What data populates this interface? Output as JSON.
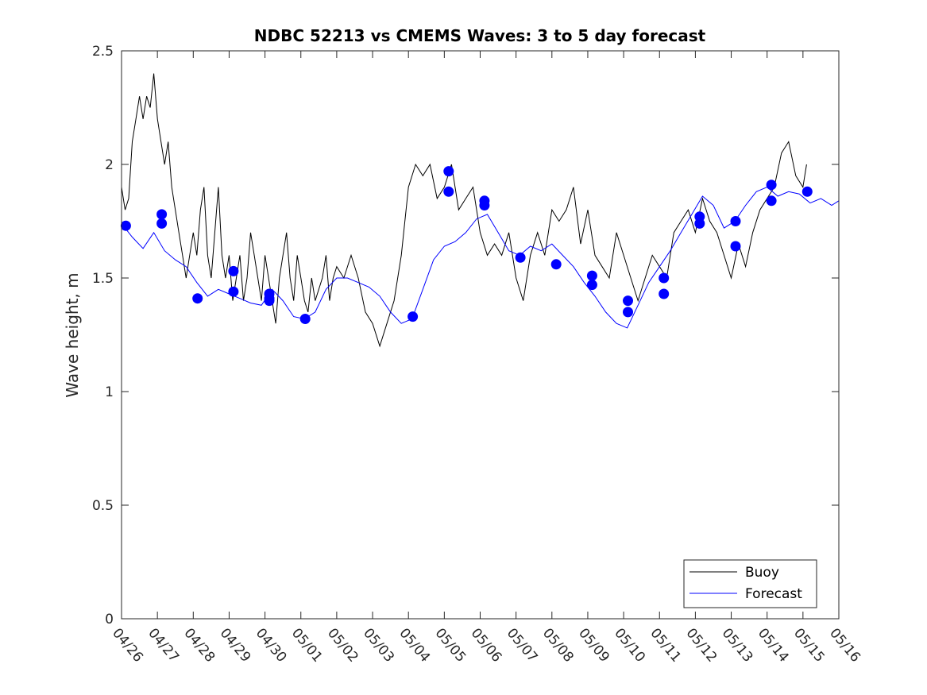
{
  "chart_data": {
    "type": "line",
    "title": "NDBC 52213 vs CMEMS Waves: 3 to 5 day forecast",
    "xlabel": "",
    "ylabel": "Wave height, m",
    "xlim": [
      "04/26",
      "05/16"
    ],
    "ylim": [
      0,
      2.5
    ],
    "x_ticks": [
      "04/26",
      "04/27",
      "04/28",
      "04/29",
      "04/30",
      "05/01",
      "05/02",
      "05/03",
      "05/04",
      "05/05",
      "05/06",
      "05/07",
      "05/08",
      "05/09",
      "05/10",
      "05/11",
      "05/12",
      "05/13",
      "05/14",
      "05/15",
      "05/16"
    ],
    "y_ticks": [
      "0",
      "0.5",
      "1",
      "1.5",
      "2",
      "2.5"
    ],
    "grid": false,
    "legend": {
      "placement": "bottom-right",
      "entries": [
        "Buoy",
        "Forecast"
      ]
    },
    "colors": {
      "buoy": "#000000",
      "forecast": "#0000ff",
      "axis": "#262626"
    },
    "series": [
      {
        "name": "Buoy",
        "x_days": [
          0,
          0.1,
          0.2,
          0.3,
          0.4,
          0.5,
          0.6,
          0.7,
          0.8,
          0.9,
          1.0,
          1.1,
          1.2,
          1.3,
          1.4,
          1.5,
          1.6,
          1.7,
          1.8,
          1.9,
          2.0,
          2.1,
          2.2,
          2.3,
          2.4,
          2.5,
          2.6,
          2.7,
          2.8,
          2.9,
          3.0,
          3.1,
          3.2,
          3.3,
          3.4,
          3.5,
          3.6,
          3.7,
          3.8,
          3.9,
          4.0,
          4.1,
          4.2,
          4.3,
          4.4,
          4.5,
          4.6,
          4.7,
          4.8,
          4.9,
          5.0,
          5.1,
          5.2,
          5.3,
          5.4,
          5.5,
          5.6,
          5.7,
          5.8,
          5.9,
          6.0,
          6.2,
          6.4,
          6.6,
          6.8,
          7.0,
          7.2,
          7.4,
          7.6,
          7.8,
          8.0,
          8.2,
          8.4,
          8.6,
          8.8,
          9.0,
          9.2,
          9.4,
          9.6,
          9.8,
          10.0,
          10.2,
          10.4,
          10.6,
          10.8,
          11.0,
          11.2,
          11.4,
          11.6,
          11.8,
          12.0,
          12.2,
          12.4,
          12.6,
          12.8,
          13.0,
          13.2,
          13.4,
          13.6,
          13.8,
          14.0,
          14.2,
          14.4,
          14.6,
          14.8,
          15.0,
          15.2,
          15.4,
          15.6,
          15.8,
          16.0,
          16.2,
          16.4,
          16.6,
          16.8,
          17.0,
          17.2,
          17.4,
          17.6,
          17.8,
          18.0,
          18.2,
          18.4,
          18.6,
          18.8,
          19.0,
          19.1
        ],
        "values": [
          1.9,
          1.8,
          1.85,
          2.1,
          2.2,
          2.3,
          2.2,
          2.3,
          2.25,
          2.4,
          2.2,
          2.1,
          2.0,
          2.1,
          1.9,
          1.8,
          1.7,
          1.6,
          1.5,
          1.6,
          1.7,
          1.6,
          1.8,
          1.9,
          1.6,
          1.5,
          1.7,
          1.9,
          1.6,
          1.5,
          1.6,
          1.4,
          1.5,
          1.6,
          1.4,
          1.5,
          1.7,
          1.6,
          1.5,
          1.4,
          1.6,
          1.5,
          1.4,
          1.3,
          1.5,
          1.6,
          1.7,
          1.5,
          1.4,
          1.6,
          1.5,
          1.4,
          1.35,
          1.5,
          1.4,
          1.45,
          1.5,
          1.6,
          1.4,
          1.5,
          1.55,
          1.5,
          1.6,
          1.5,
          1.35,
          1.3,
          1.2,
          1.3,
          1.4,
          1.6,
          1.9,
          2.0,
          1.95,
          2.0,
          1.85,
          1.9,
          2.0,
          1.8,
          1.85,
          1.9,
          1.7,
          1.6,
          1.65,
          1.6,
          1.7,
          1.5,
          1.4,
          1.6,
          1.7,
          1.6,
          1.8,
          1.75,
          1.8,
          1.9,
          1.65,
          1.8,
          1.6,
          1.55,
          1.5,
          1.7,
          1.6,
          1.5,
          1.4,
          1.5,
          1.6,
          1.55,
          1.5,
          1.7,
          1.75,
          1.8,
          1.7,
          1.85,
          1.75,
          1.7,
          1.6,
          1.5,
          1.65,
          1.55,
          1.7,
          1.8,
          1.85,
          1.9,
          2.05,
          2.1,
          1.95,
          1.9,
          2.0
        ]
      },
      {
        "name": "Forecast",
        "x_days": [
          0,
          0.3,
          0.6,
          0.9,
          1.2,
          1.5,
          1.8,
          2.1,
          2.4,
          2.7,
          3.0,
          3.3,
          3.6,
          3.9,
          4.2,
          4.5,
          4.8,
          5.1,
          5.4,
          5.7,
          6.0,
          6.3,
          6.6,
          6.9,
          7.2,
          7.5,
          7.8,
          8.1,
          8.4,
          8.7,
          9.0,
          9.3,
          9.6,
          9.9,
          10.2,
          10.5,
          10.8,
          11.1,
          11.4,
          11.7,
          12.0,
          12.3,
          12.6,
          12.9,
          13.2,
          13.5,
          13.8,
          14.1,
          14.4,
          14.7,
          15.0,
          15.3,
          15.6,
          15.9,
          16.2,
          16.5,
          16.8,
          17.1,
          17.4,
          17.7,
          18.0,
          18.3,
          18.6,
          18.9,
          19.2,
          19.5,
          19.8,
          20.0
        ],
        "values": [
          1.74,
          1.68,
          1.63,
          1.7,
          1.62,
          1.58,
          1.55,
          1.48,
          1.42,
          1.45,
          1.43,
          1.41,
          1.39,
          1.38,
          1.45,
          1.4,
          1.33,
          1.32,
          1.35,
          1.45,
          1.5,
          1.5,
          1.48,
          1.46,
          1.42,
          1.35,
          1.3,
          1.32,
          1.45,
          1.58,
          1.64,
          1.66,
          1.7,
          1.76,
          1.78,
          1.7,
          1.62,
          1.6,
          1.64,
          1.62,
          1.65,
          1.6,
          1.55,
          1.48,
          1.42,
          1.35,
          1.3,
          1.28,
          1.38,
          1.48,
          1.55,
          1.62,
          1.7,
          1.78,
          1.86,
          1.82,
          1.72,
          1.75,
          1.82,
          1.88,
          1.9,
          1.86,
          1.88,
          1.87,
          1.83,
          1.85,
          1.82,
          1.84
        ]
      }
    ],
    "forecast_markers": {
      "x_days": [
        0.12,
        1.12,
        1.12,
        2.12,
        3.12,
        3.12,
        4.12,
        4.12,
        4.12,
        5.12,
        8.12,
        9.12,
        9.12,
        10.12,
        10.12,
        11.12,
        12.12,
        13.12,
        13.12,
        14.12,
        14.12,
        15.12,
        15.12,
        16.12,
        16.12,
        17.12,
        17.12,
        18.12,
        18.12,
        19.12
      ],
      "values": [
        1.73,
        1.78,
        1.74,
        1.41,
        1.53,
        1.44,
        1.43,
        1.4,
        1.41,
        1.32,
        1.33,
        1.97,
        1.88,
        1.84,
        1.82,
        1.59,
        1.56,
        1.51,
        1.47,
        1.4,
        1.35,
        1.5,
        1.43,
        1.77,
        1.74,
        1.75,
        1.64,
        1.91,
        1.84,
        1.88
      ]
    }
  }
}
